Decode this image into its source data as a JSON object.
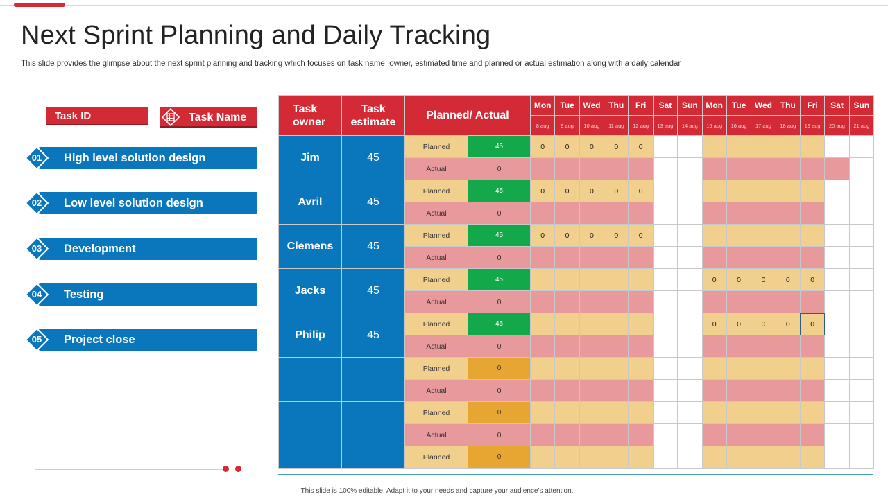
{
  "title": "Next Sprint Planning and Daily Tracking",
  "subtitle": "This slide provides the glimpse about the next sprint planning and tracking which focuses on task name, owner, estimated time and planned or actual estimation along with a daily calendar",
  "footer": "This slide is 100% editable.  Adapt it to your needs and capture your audience’s attention.",
  "left_panel": {
    "task_id_label": "Task ID",
    "task_name_label": "Task Name",
    "items": [
      {
        "num": "01",
        "label": "High level solution design"
      },
      {
        "num": "02",
        "label": "Low level solution design"
      },
      {
        "num": "03",
        "label": "Development"
      },
      {
        "num": "04",
        "label": "Testing"
      },
      {
        "num": "05",
        "label": "Project close"
      }
    ]
  },
  "table": {
    "headers": {
      "owner": "Task owner",
      "estimate": "Task estimate",
      "planned_actual": "Planned/ Actual"
    },
    "days": [
      {
        "day": "Mon",
        "date": "8 aug"
      },
      {
        "day": "Tue",
        "date": "9 aug"
      },
      {
        "day": "Wed",
        "date": "10 aug"
      },
      {
        "day": "Thu",
        "date": "11 aug"
      },
      {
        "day": "Fri",
        "date": "12 aug"
      },
      {
        "day": "Sat",
        "date": "13 aug"
      },
      {
        "day": "Sun",
        "date": "14 aug"
      },
      {
        "day": "Mon",
        "date": "15 aug"
      },
      {
        "day": "Tue",
        "date": "16 aug"
      },
      {
        "day": "Wed",
        "date": "17 aug"
      },
      {
        "day": "Thu",
        "date": "18 aug"
      },
      {
        "day": "Fri",
        "date": "19 aug"
      },
      {
        "day": "Sat",
        "date": "20 aug"
      },
      {
        "day": "Sun",
        "date": "21 aug"
      }
    ],
    "planned_label": "Planned",
    "actual_label": "Actual",
    "rows": [
      {
        "owner": "Jim",
        "estimate": "45",
        "planned_value": "45",
        "actual_value": "0",
        "planned_days": [
          "0",
          "0",
          "0",
          "0",
          "0",
          "",
          "",
          "",
          "",
          "",
          "",
          "",
          "",
          ""
        ]
      },
      {
        "owner": "Avril",
        "estimate": "45",
        "planned_value": "45",
        "actual_value": "0",
        "planned_days": [
          "0",
          "0",
          "0",
          "0",
          "0",
          "",
          "",
          "",
          "",
          "",
          "",
          "",
          "",
          ""
        ]
      },
      {
        "owner": "Clemens",
        "estimate": "45",
        "planned_value": "45",
        "actual_value": "0",
        "planned_days": [
          "0",
          "0",
          "0",
          "0",
          "0",
          "",
          "",
          "",
          "",
          "",
          "",
          "",
          "",
          ""
        ]
      },
      {
        "owner": "Jacks",
        "estimate": "45",
        "planned_value": "45",
        "actual_value": "0",
        "planned_days": [
          "",
          "",
          "",
          "",
          "",
          "",
          "",
          "0",
          "0",
          "0",
          "0",
          "0",
          "",
          ""
        ]
      },
      {
        "owner": "Philip",
        "estimate": "45",
        "planned_value": "45",
        "actual_value": "0",
        "planned_days": [
          "",
          "",
          "",
          "",
          "",
          "",
          "",
          "0",
          "0",
          "0",
          "0",
          "0",
          "",
          ""
        ]
      },
      {
        "owner": "",
        "estimate": "",
        "planned_value": "0",
        "actual_value": "0",
        "planned_days": [
          "",
          "",
          "",
          "",
          "",
          "",
          "",
          "",
          "",
          "",
          "",
          "",
          "",
          ""
        ]
      },
      {
        "owner": "",
        "estimate": "",
        "planned_value": "0",
        "actual_value": "0",
        "planned_days": [
          "",
          "",
          "",
          "",
          "",
          "",
          "",
          "",
          "",
          "",
          "",
          "",
          "",
          ""
        ]
      },
      {
        "owner": "",
        "estimate": "",
        "planned_value": "0",
        "planned_days": [
          "",
          "",
          "",
          "",
          "",
          "",
          "",
          "",
          "",
          "",
          "",
          "",
          "",
          ""
        ]
      }
    ]
  },
  "colors": {
    "accent": "#d42a35",
    "blue": "#0a77bd",
    "green": "#13a84a",
    "amber": "#e6a631",
    "tan": "#f1cf8c",
    "pink": "#e8999c"
  }
}
